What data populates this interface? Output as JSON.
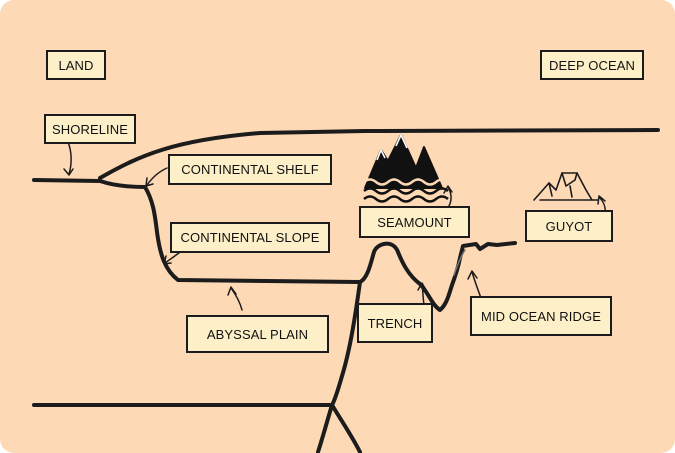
{
  "diagram": {
    "labels": {
      "land": "LAND",
      "deep_ocean": "DEEP OCEAN",
      "shoreline": "SHORELINE",
      "continental_shelf": "CONTINENTAL SHELF",
      "continental_slope": "CONTINENTAL SLOPE",
      "abyssal_plain": "ABYSSAL PLAIN",
      "seamount": "SEAMOUNT",
      "trench": "TRENCH",
      "guyot": "GUYOT",
      "mid_ocean_ridge": "MID OCEAN RIDGE"
    },
    "icons": [
      "seamount-mountain-icon",
      "guyot-flat-top-icon"
    ],
    "colors": {
      "background": "#fdd9b5",
      "label_fill": "#fdf0c8",
      "ink": "#1c1c1c"
    }
  }
}
